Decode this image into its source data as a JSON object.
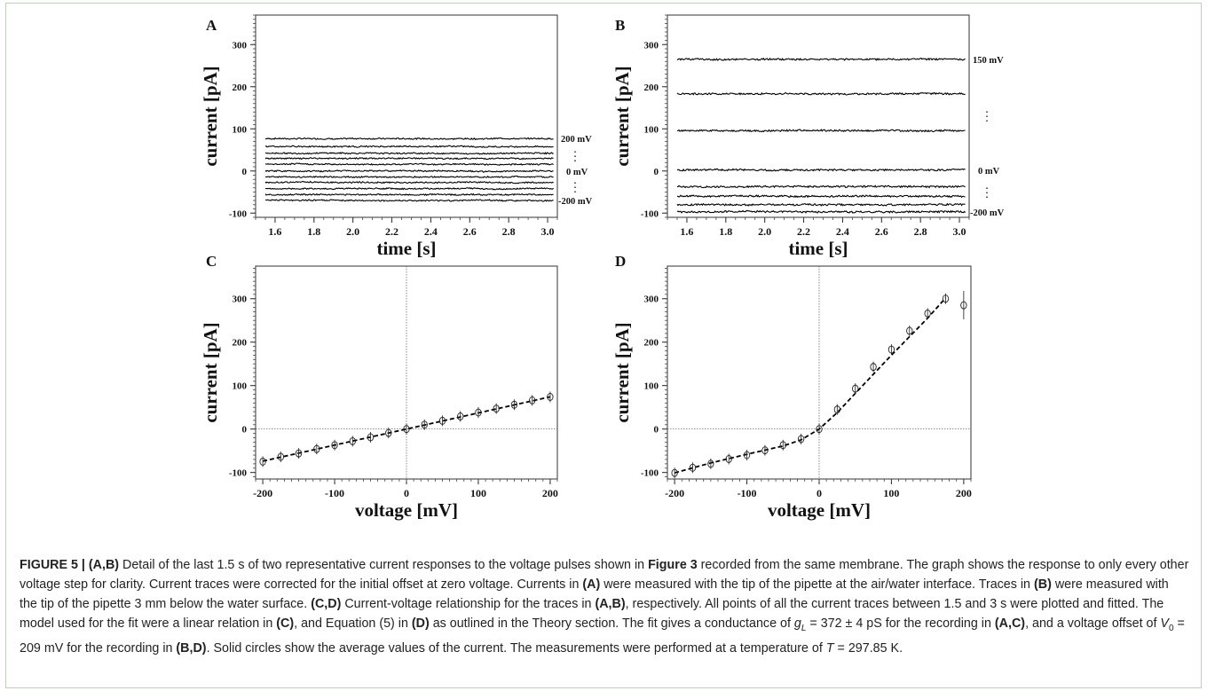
{
  "figure": {
    "panels": [
      {
        "letter": "A",
        "xlabel": "time [s]",
        "ylabel": "current [pA]",
        "x_ticks": [
          "1.6",
          "1.8",
          "2.0",
          "2.2",
          "2.4",
          "2.6",
          "2.8",
          "3.0"
        ],
        "y_ticks": [
          "300",
          "200",
          "100",
          "0",
          "-100"
        ],
        "trace_labels": [
          "200 mV",
          "0 mV",
          "-200 mV"
        ],
        "dot_marker": "⋮"
      },
      {
        "letter": "B",
        "xlabel": "time [s]",
        "ylabel": "current [pA]",
        "x_ticks": [
          "1.6",
          "1.8",
          "2.0",
          "2.2",
          "2.4",
          "2.6",
          "2.8",
          "3.0"
        ],
        "y_ticks": [
          "300",
          "200",
          "100",
          "0",
          "-100"
        ],
        "trace_labels": [
          "150 mV",
          "0 mV",
          "-200 mV"
        ],
        "dot_marker": "⋮"
      },
      {
        "letter": "C",
        "xlabel": "voltage [mV]",
        "ylabel": "current [pA]",
        "x_ticks": [
          "-200",
          "-100",
          "0",
          "100",
          "200"
        ],
        "y_ticks": [
          "300",
          "200",
          "100",
          "0",
          "-100"
        ]
      },
      {
        "letter": "D",
        "xlabel": "voltage [mV]",
        "ylabel": "current [pA]",
        "x_ticks": [
          "-200",
          "-100",
          "0",
          "100",
          "200"
        ],
        "y_ticks": [
          "300",
          "200",
          "100",
          "0",
          "-100"
        ]
      }
    ]
  },
  "chart_data": [
    {
      "type": "line",
      "panel": "A",
      "xlim": [
        1.5,
        3.05
      ],
      "ylim": [
        -110,
        370
      ],
      "x_range": [
        1.55,
        3.03
      ],
      "trace_levels": [
        77,
        58,
        42,
        30,
        16,
        0,
        -14,
        -27,
        -42,
        -56,
        -70
      ],
      "noise": 3
    },
    {
      "type": "line",
      "panel": "B",
      "xlim": [
        1.5,
        3.05
      ],
      "ylim": [
        -110,
        370
      ],
      "x_range": [
        1.55,
        3.03
      ],
      "trace_levels": [
        265,
        183,
        96,
        2,
        -37,
        -60,
        -80,
        -97
      ],
      "noise": 4
    },
    {
      "type": "scatter",
      "panel": "C",
      "xlim": [
        -210,
        210
      ],
      "ylim": [
        -115,
        375
      ],
      "points": [
        {
          "x": -200,
          "y": -75
        },
        {
          "x": -175,
          "y": -64
        },
        {
          "x": -150,
          "y": -56
        },
        {
          "x": -125,
          "y": -46
        },
        {
          "x": -100,
          "y": -37
        },
        {
          "x": -75,
          "y": -28
        },
        {
          "x": -50,
          "y": -19
        },
        {
          "x": -25,
          "y": -9
        },
        {
          "x": 0,
          "y": 0
        },
        {
          "x": 25,
          "y": 10
        },
        {
          "x": 50,
          "y": 19
        },
        {
          "x": 75,
          "y": 29
        },
        {
          "x": 100,
          "y": 38
        },
        {
          "x": 125,
          "y": 47
        },
        {
          "x": 150,
          "y": 56
        },
        {
          "x": 175,
          "y": 66
        },
        {
          "x": 200,
          "y": 74
        }
      ],
      "fit": [
        {
          "x": -200,
          "y": -74
        },
        {
          "x": 200,
          "y": 74
        }
      ]
    },
    {
      "type": "scatter",
      "panel": "D",
      "xlim": [
        -210,
        210
      ],
      "ylim": [
        -115,
        375
      ],
      "points": [
        {
          "x": -200,
          "y": -101
        },
        {
          "x": -175,
          "y": -89
        },
        {
          "x": -150,
          "y": -80
        },
        {
          "x": -125,
          "y": -69
        },
        {
          "x": -100,
          "y": -60
        },
        {
          "x": -75,
          "y": -49
        },
        {
          "x": -50,
          "y": -37
        },
        {
          "x": -25,
          "y": -23
        },
        {
          "x": 0,
          "y": 0
        },
        {
          "x": 25,
          "y": 45
        },
        {
          "x": 50,
          "y": 93
        },
        {
          "x": 75,
          "y": 143
        },
        {
          "x": 100,
          "y": 183
        },
        {
          "x": 125,
          "y": 226
        },
        {
          "x": 150,
          "y": 266
        },
        {
          "x": 175,
          "y": 300
        },
        {
          "x": 200,
          "y": 285
        }
      ],
      "fit": [
        {
          "x": -200,
          "y": -101
        },
        {
          "x": -150,
          "y": -78
        },
        {
          "x": -100,
          "y": -58
        },
        {
          "x": -50,
          "y": -39
        },
        {
          "x": -25,
          "y": -25
        },
        {
          "x": 0,
          "y": 0
        },
        {
          "x": 25,
          "y": 38
        },
        {
          "x": 50,
          "y": 82
        },
        {
          "x": 100,
          "y": 170
        },
        {
          "x": 150,
          "y": 255
        },
        {
          "x": 175,
          "y": 302
        }
      ]
    }
  ],
  "caption": {
    "label": "FIGURE 5 |",
    "segments": [
      {
        "t": "(A,B)",
        "b": true
      },
      {
        "t": " Detail of the last 1.5 s of two representative current responses to the voltage pulses shown in "
      },
      {
        "t": "Figure 3",
        "b": true
      },
      {
        "t": " recorded from the same membrane. The graph shows the response to only every other voltage step for clarity. Current traces were corrected for the initial offset at zero voltage. Currents in "
      },
      {
        "t": "(A)",
        "b": true
      },
      {
        "t": " were measured with the tip of the pipette at the air/water interface. Traces in "
      },
      {
        "t": "(B)",
        "b": true
      },
      {
        "t": " were measured with the tip of the pipette 3 mm below the water surface. "
      },
      {
        "t": "(C,D)",
        "b": true
      },
      {
        "t": " Current-voltage relationship for the traces in "
      },
      {
        "t": "(A,B)",
        "b": true
      },
      {
        "t": ", respectively. All points of all the current traces between 1.5 and 3 s were plotted and fitted. The model used for the fit were a linear relation in "
      },
      {
        "t": "(C)",
        "b": true
      },
      {
        "t": ", and Equation (5) in "
      },
      {
        "t": "(D)",
        "b": true
      },
      {
        "t": " as outlined in the Theory section. The fit gives a conductance of "
      },
      {
        "t": "g",
        "i": true
      },
      {
        "t": "L",
        "sub": true,
        "i": true
      },
      {
        "t": " = 372 ± 4 pS for the recording in "
      },
      {
        "t": "(A,C)",
        "b": true
      },
      {
        "t": ", and a voltage offset of "
      },
      {
        "t": "V",
        "i": true
      },
      {
        "t": "0",
        "sub": true
      },
      {
        "t": " = 209 mV for the recording in "
      },
      {
        "t": "(B,D)",
        "b": true
      },
      {
        "t": ". Solid circles show the average values of the current. The measurements were performed at a temperature of "
      },
      {
        "t": "T",
        "i": true
      },
      {
        "t": " = 297.85 K."
      }
    ]
  }
}
